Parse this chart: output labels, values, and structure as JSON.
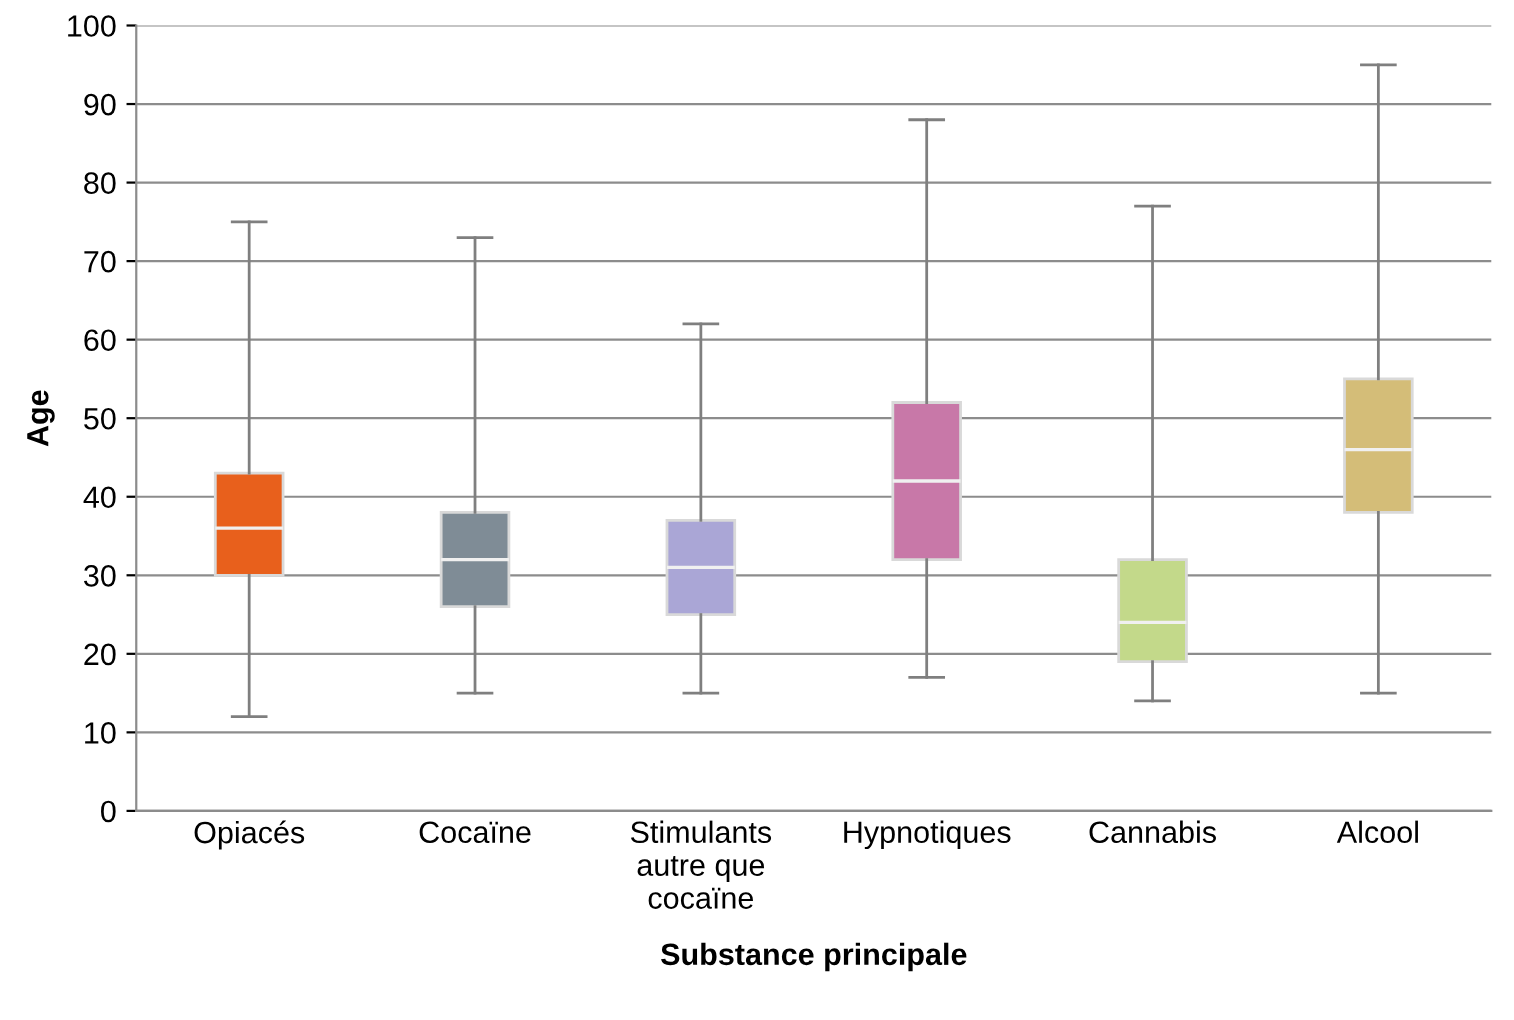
{
  "chart_data": {
    "type": "box",
    "xlabel": "Substance principale",
    "ylabel": "Age",
    "categories": [
      "Opiacés",
      "Cocaïne",
      "Stimulants\nautre que\ncocaïne",
      "Hypnotiques",
      "Cannabis",
      "Alcool"
    ],
    "boxes": [
      {
        "low": 12,
        "q1": 30,
        "median": 36,
        "q3": 43,
        "high": 75
      },
      {
        "low": 15,
        "q1": 26,
        "median": 32,
        "q3": 38,
        "high": 73
      },
      {
        "low": 15,
        "q1": 25,
        "median": 31,
        "q3": 37,
        "high": 62
      },
      {
        "low": 17,
        "q1": 32,
        "median": 42,
        "q3": 52,
        "high": 88
      },
      {
        "low": 14,
        "q1": 19,
        "median": 24,
        "q3": 32,
        "high": 77
      },
      {
        "low": 15,
        "q1": 38,
        "median": 46,
        "q3": 55,
        "high": 95
      }
    ],
    "colors": [
      "#e8601c",
      "#7f8c96",
      "#aaa6d6",
      "#c878a8",
      "#c3d98a",
      "#d4bd78"
    ],
    "ylim": [
      0,
      100
    ],
    "yticks": [
      0,
      10,
      20,
      30,
      40,
      50,
      60,
      70,
      80,
      90,
      100
    ],
    "grid": "y"
  }
}
